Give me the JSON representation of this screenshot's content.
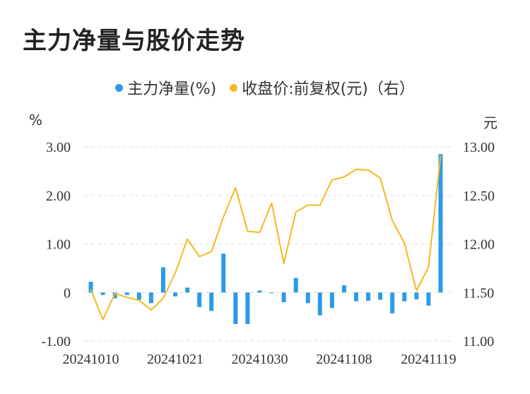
{
  "title": "主力净量与股价走势",
  "legend": {
    "left_series": "主力净量(%)",
    "right_series": "收盘价:前复权(元)（右）"
  },
  "colors": {
    "bar": "#2b9be8",
    "line": "#f5b820",
    "grid": "#dddddd"
  },
  "chart_data": {
    "type": "bar+line",
    "title": "主力净量与股价走势",
    "left_axis": {
      "unit": "%",
      "ylim": [
        -1.0,
        3.0
      ],
      "ticks": [
        "3.00",
        "2.00",
        "1.00",
        "0",
        "-1.00"
      ],
      "tick_values": [
        3,
        2,
        1,
        0,
        -1
      ]
    },
    "right_axis": {
      "unit": "元",
      "ylim": [
        11.0,
        13.0
      ],
      "ticks": [
        "13.00",
        "12.50",
        "12.00",
        "11.50",
        "11.00"
      ],
      "tick_values": [
        13,
        12.5,
        12,
        11.5,
        11
      ]
    },
    "x_tick_labels": [
      "20241010",
      "20241021",
      "20241030",
      "20241108",
      "20241119"
    ],
    "x_tick_index": [
      0,
      7,
      14,
      21,
      28
    ],
    "series": [
      {
        "name": "主力净量(%)",
        "type": "bar",
        "axis": "left",
        "values": [
          0.22,
          -0.05,
          -0.12,
          -0.05,
          -0.15,
          -0.22,
          0.52,
          -0.08,
          0.1,
          -0.3,
          -0.38,
          0.8,
          -0.65,
          -0.65,
          0.04,
          -0.01,
          -0.2,
          0.3,
          -0.22,
          -0.47,
          -0.32,
          0.15,
          -0.18,
          -0.17,
          -0.15,
          -0.43,
          -0.18,
          -0.14,
          -0.27,
          2.85
        ]
      },
      {
        "name": "收盘价:前复权(元)",
        "type": "line",
        "axis": "right",
        "values": [
          11.53,
          11.22,
          11.49,
          11.45,
          11.42,
          11.32,
          11.44,
          11.7,
          12.05,
          11.87,
          11.92,
          12.28,
          12.58,
          12.13,
          12.12,
          12.42,
          11.8,
          12.33,
          12.4,
          12.4,
          12.66,
          12.69,
          12.77,
          12.76,
          12.68,
          12.24,
          12.01,
          11.52,
          11.76,
          12.91
        ]
      }
    ]
  }
}
